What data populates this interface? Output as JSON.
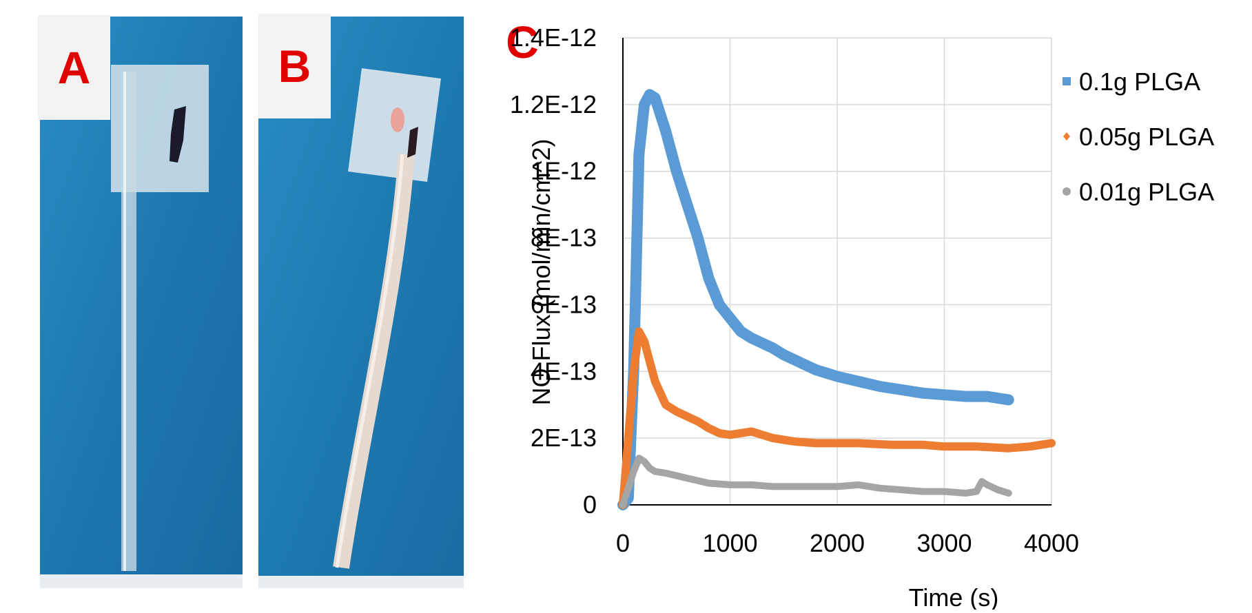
{
  "panels": {
    "a_label": "A",
    "b_label": "B",
    "c_label": "C"
  },
  "colors": {
    "panel_label": "#e00000",
    "photo_background": "#1f7fb5",
    "series_01g": "#5b9bd5",
    "series_005g": "#ed7d31",
    "series_001g": "#a5a5a5"
  },
  "chart_data": {
    "type": "line",
    "xlabel": "Time (s)",
    "ylabel": "NO Flux (mol/min/cm^2)",
    "xlim": [
      0,
      4000
    ],
    "ylim": [
      0,
      1.4e-12
    ],
    "x_ticks": [
      0,
      1000,
      2000,
      3000,
      4000
    ],
    "x_tick_labels": [
      "0",
      "1000",
      "2000",
      "3000",
      "4000"
    ],
    "y_ticks": [
      0,
      2e-13,
      4e-13,
      6e-13,
      8e-13,
      1e-12,
      1.2e-12,
      1.4e-12
    ],
    "y_tick_labels": [
      "0",
      "2E-13",
      "4E-13",
      "6E-13",
      "8E-13",
      "1E-12",
      "1.2E-12",
      "1.4E-12"
    ],
    "grid": true,
    "legend_position": "top-right",
    "series": [
      {
        "name": "0.1g PLGA",
        "color": "#5b9bd5",
        "marker": "square",
        "x": [
          0,
          50,
          100,
          150,
          200,
          250,
          300,
          400,
          500,
          600,
          700,
          800,
          900,
          1000,
          1100,
          1200,
          1300,
          1400,
          1500,
          1600,
          1700,
          1800,
          1900,
          2000,
          2200,
          2400,
          2600,
          2800,
          3000,
          3200,
          3400,
          3600
        ],
        "y": [
          0,
          2e-14,
          4e-13,
          1.05e-12,
          1.2e-12,
          1.23e-12,
          1.22e-12,
          1.12e-12,
          1e-12,
          9e-13,
          8e-13,
          6.8e-13,
          6e-13,
          5.6e-13,
          5.2e-13,
          5e-13,
          4.85e-13,
          4.7e-13,
          4.5e-13,
          4.35e-13,
          4.2e-13,
          4.05e-13,
          3.95e-13,
          3.85e-13,
          3.7e-13,
          3.55e-13,
          3.45e-13,
          3.35e-13,
          3.3e-13,
          3.25e-13,
          3.25e-13,
          3.15e-13
        ]
      },
      {
        "name": "0.05g PLGA",
        "color": "#ed7d31",
        "marker": "diamond",
        "x": [
          0,
          50,
          100,
          150,
          200,
          250,
          300,
          400,
          500,
          600,
          700,
          800,
          900,
          1000,
          1100,
          1200,
          1300,
          1400,
          1600,
          1800,
          2000,
          2200,
          2500,
          2800,
          3000,
          3300,
          3600,
          3800,
          3900,
          4000
        ],
        "y": [
          0,
          2e-13,
          4e-13,
          5.2e-13,
          4.9e-13,
          4.3e-13,
          3.7e-13,
          3e-13,
          2.8e-13,
          2.65e-13,
          2.5e-13,
          2.3e-13,
          2.15e-13,
          2.1e-13,
          2.15e-13,
          2.2e-13,
          2.1e-13,
          2e-13,
          1.9e-13,
          1.85e-13,
          1.85e-13,
          1.85e-13,
          1.8e-13,
          1.8e-13,
          1.75e-13,
          1.75e-13,
          1.7e-13,
          1.75e-13,
          1.8e-13,
          1.85e-13
        ]
      },
      {
        "name": "0.01g PLGA",
        "color": "#a5a5a5",
        "marker": "circle",
        "x": [
          0,
          50,
          100,
          150,
          200,
          250,
          300,
          400,
          600,
          800,
          1000,
          1200,
          1400,
          1600,
          1800,
          2000,
          2200,
          2400,
          2600,
          2800,
          3000,
          3200,
          3300,
          3350,
          3400,
          3500,
          3600
        ],
        "y": [
          0,
          5e-14,
          1e-13,
          1.4e-13,
          1.3e-13,
          1.1e-13,
          1e-13,
          9.5e-14,
          8e-14,
          6.5e-14,
          6e-14,
          6e-14,
          5.5e-14,
          5.5e-14,
          5.5e-14,
          5.5e-14,
          6e-14,
          5e-14,
          4.5e-14,
          4e-14,
          4e-14,
          3.5e-14,
          4e-14,
          7e-14,
          6e-14,
          4.5e-14,
          3.5e-14
        ]
      }
    ]
  }
}
